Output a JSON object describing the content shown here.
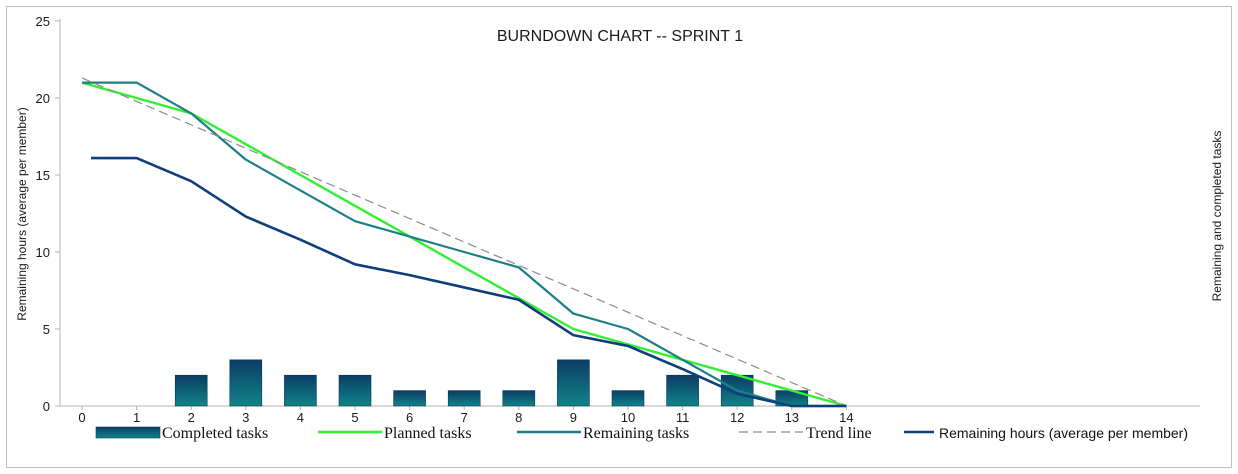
{
  "chart_data": {
    "type": "bar+line",
    "title": "BURNDOWN CHART -- SPRINT 1",
    "ylabel_left": "Remaining hours (average per member)",
    "ylabel_right": "Remaining and completed tasks",
    "ylim": [
      0,
      25
    ],
    "yticks": [
      0,
      5,
      10,
      15,
      20,
      25
    ],
    "x": [
      0,
      1,
      2,
      3,
      4,
      5,
      6,
      7,
      8,
      9,
      10,
      11,
      12,
      13,
      14
    ],
    "series": [
      {
        "name": "Completed tasks",
        "kind": "bar",
        "color": "#0e5a73",
        "x": [
          2,
          3,
          4,
          5,
          6,
          7,
          8,
          9,
          10,
          11,
          12,
          13
        ],
        "values": [
          2,
          3,
          2,
          2,
          1,
          1,
          1,
          3,
          1,
          2,
          2,
          1
        ]
      },
      {
        "name": "Planned tasks",
        "kind": "line",
        "color": "#33ee33",
        "x": [
          0,
          1,
          2,
          3,
          4,
          5,
          6,
          7,
          8,
          9,
          10,
          11,
          12,
          13,
          14
        ],
        "values": [
          21,
          20,
          19,
          17,
          15,
          13,
          11,
          9,
          7,
          5,
          4,
          3,
          2,
          1,
          0
        ]
      },
      {
        "name": "Remaining tasks",
        "kind": "line",
        "color": "#1d7f86",
        "x": [
          0,
          1,
          2,
          3,
          4,
          5,
          6,
          7,
          8,
          9,
          10,
          11,
          12,
          13,
          14
        ],
        "values": [
          21,
          21,
          19,
          16,
          14,
          12,
          11,
          10,
          9,
          6,
          5,
          3,
          1,
          0,
          0
        ]
      },
      {
        "name": "Trend line",
        "kind": "dashed",
        "color": "#8c8c8c",
        "x": [
          0,
          14
        ],
        "values": [
          21.3,
          0
        ]
      },
      {
        "name": "Remaining hours (average per member)",
        "kind": "line",
        "color": "#0e3f7a",
        "x": [
          0,
          1,
          2,
          3,
          4,
          5,
          6,
          7,
          8,
          9,
          10,
          11,
          12,
          13,
          14
        ],
        "values": [
          16.1,
          16.1,
          14.6,
          12.3,
          10.8,
          9.2,
          8.5,
          7.7,
          6.9,
          4.6,
          3.9,
          2.4,
          0.8,
          0,
          0
        ]
      }
    ],
    "legend_position": "bottom",
    "grid": false
  }
}
